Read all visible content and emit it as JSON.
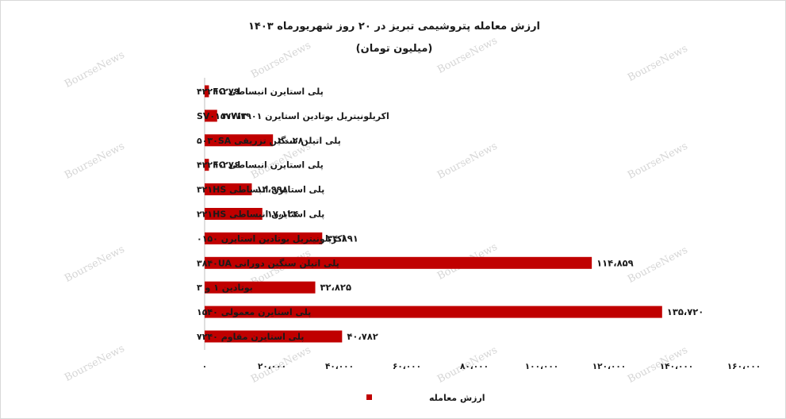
{
  "chart_data": {
    "type": "bar",
    "orientation": "horizontal",
    "title": "ارزش معامله پتروشیمی تبریز در ۲۰ روز شهریورماه ۱۴۰۳",
    "subtitle": "(میلیون تومان)",
    "categories": [
      "پلی استایرن انبساطی ۴۲۲FC",
      "اکریلونیتریل بوتادین استایرن SV۰۱۵۷W۲۹۰۱",
      "پلی اتیلن سنگین تزریقی ۵۰۳۰SA",
      "پلی استایرن انبساطی ۴۲۲FC",
      "پلی استایرن انبساطی ۳۲۱HS",
      "پلی استایرن انبساطی ۲۲۱HS",
      "اکریلونیتریل بوتادین استایرن ۰۱۵۰",
      "پلی اتیلن سنگین دورانی ۳۸۴۰UA",
      "بوتادین ۱ و ۳",
      "پلی استایرن معمولی ۱۵۴۰",
      "پلی استایرن مقاوم ۷۲۴۰"
    ],
    "series": [
      {
        "name": "ارزش معامله",
        "color": "#c00000",
        "values": [
          1279,
          3713,
          20280,
          1276,
          13998,
          17124,
          34891,
          114859,
          32825,
          135720,
          40782
        ],
        "value_labels": [
          "۱،۲۷۹",
          "۳،۷۱۳",
          "۲۰،۲۸۰",
          "۱،۲۷۶",
          "۱۳،۹۹۸",
          "۱۷،۱۲۴",
          "۳۴،۸۹۱",
          "۱۱۴،۸۵۹",
          "۳۲،۸۲۵",
          "۱۳۵،۷۲۰",
          "۴۰،۷۸۲"
        ]
      }
    ],
    "xlim": [
      0,
      160000
    ],
    "x_ticks": [
      0,
      20000,
      40000,
      60000,
      80000,
      100000,
      120000,
      140000,
      160000
    ],
    "x_tick_labels": [
      "۰",
      "۲۰،۰۰۰",
      "۴۰،۰۰۰",
      "۶۰،۰۰۰",
      "۸۰،۰۰۰",
      "۱۰۰،۰۰۰",
      "۱۲۰،۰۰۰",
      "۱۴۰،۰۰۰",
      "۱۶۰،۰۰۰"
    ],
    "grid": false,
    "legend": "bottom",
    "watermark": "BourseNews"
  }
}
